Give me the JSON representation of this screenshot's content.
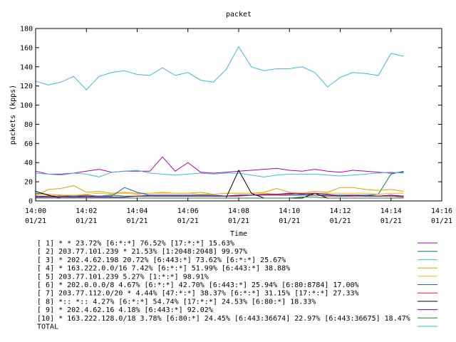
{
  "chart_data": {
    "type": "line",
    "title": "packet",
    "xlabel": "Time",
    "ylabel": "packets (kpps)",
    "ylim": [
      0,
      180
    ],
    "xlim": [
      "14:00",
      "14:16"
    ],
    "yticks": [
      0,
      20,
      40,
      60,
      80,
      100,
      120,
      140,
      160,
      180
    ],
    "xticks": [
      {
        "time": "14:00",
        "date": "01/21"
      },
      {
        "time": "14:02",
        "date": "01/21"
      },
      {
        "time": "14:04",
        "date": "01/21"
      },
      {
        "time": "14:06",
        "date": "01/21"
      },
      {
        "time": "14:08",
        "date": "01/21"
      },
      {
        "time": "14:10",
        "date": "01/21"
      },
      {
        "time": "14:12",
        "date": "01/21"
      },
      {
        "time": "14:14",
        "date": "01/21"
      },
      {
        "time": "14:16",
        "date": "01/21"
      }
    ],
    "grid": false,
    "legend_position": "bottom",
    "x_minutes": [
      0,
      0.5,
      1,
      1.5,
      2,
      2.5,
      3,
      3.5,
      4,
      4.5,
      5,
      5.5,
      6,
      6.5,
      7,
      7.5,
      8,
      8.5,
      9,
      9.5,
      10,
      10.5,
      11,
      11.5,
      12,
      12.5,
      13,
      13.5,
      14,
      14.5
    ],
    "series": [
      {
        "name": "[ 1] * * 23.72%  [6:*:*] 76.52% [17:*:*] 15.63%",
        "color": "#b000b0",
        "values": [
          31,
          28,
          28,
          29,
          31,
          33,
          30,
          31,
          31,
          31,
          46,
          31,
          40,
          30,
          29,
          30,
          31,
          32,
          33,
          34,
          32,
          31,
          33,
          31,
          30,
          32,
          31,
          30,
          29,
          30
        ]
      },
      {
        "name": "[ 2] 203.77.101.239 * 21.53%  [1:2048:2048] 99.97%",
        "color": "#008060",
        "values": [
          8,
          7,
          6,
          5,
          5,
          5,
          6,
          5,
          5,
          6,
          6,
          6,
          6,
          6,
          6,
          5,
          6,
          6,
          6,
          6,
          6,
          6,
          6,
          6,
          6,
          6,
          6,
          7,
          28,
          31
        ]
      },
      {
        "name": "[ 3] * 202.4.62.198 20.72%  [6:443:*] 73.62% [6:*:*] 25.67%",
        "color": "#40b8e0",
        "values": [
          29,
          28,
          27,
          29,
          28,
          25,
          30,
          31,
          32,
          29,
          28,
          27,
          28,
          29,
          28,
          29,
          29,
          27,
          25,
          27,
          28,
          28,
          28,
          27,
          26,
          27,
          28,
          29,
          30,
          29
        ]
      },
      {
        "name": "[ 4] * 163.222.0.0/16 7.42%  [6:*:*] 51.99% [6:443:*] 38.88%",
        "color": "#e0a000",
        "values": [
          5,
          12,
          13,
          16,
          9,
          10,
          8,
          9,
          8,
          8,
          9,
          8,
          8,
          9,
          7,
          8,
          8,
          8,
          9,
          13,
          9,
          8,
          10,
          9,
          14,
          14,
          12,
          11,
          12,
          10
        ]
      },
      {
        "name": "[ 5] 203.77.101.239 5.27%  [1:*:*] 98.91%",
        "color": "#f0c000",
        "values": [
          7,
          7,
          6,
          6,
          7,
          8,
          7,
          8,
          7,
          8,
          8,
          8,
          8,
          7,
          7,
          8,
          8,
          8,
          8,
          7,
          8,
          8,
          8,
          8,
          8,
          8,
          8,
          7,
          8,
          8
        ]
      },
      {
        "name": "[ 6] * 202.0.0.0/8 4.67%  [6:*:*] 42.70% [6:443:*] 25.94% [6:80:8784] 17.00%",
        "color": "#2060c0",
        "values": [
          5,
          5,
          5,
          5,
          6,
          5,
          5,
          14,
          9,
          6,
          6,
          6,
          6,
          6,
          6,
          5,
          5,
          6,
          6,
          6,
          6,
          6,
          6,
          6,
          5,
          5,
          6,
          5,
          5,
          5
        ]
      },
      {
        "name": "[ 7] 203.77.112.0/20 * 4.44%  [47:*:*] 38.37% [6:*:*] 31.15% [17:*:*] 27.33%",
        "color": "#e02020",
        "values": [
          4,
          5,
          5,
          4,
          5,
          4,
          4,
          4,
          5,
          5,
          5,
          5,
          5,
          5,
          5,
          5,
          5,
          6,
          6,
          6,
          7,
          8,
          6,
          5,
          5,
          5,
          5,
          5,
          5,
          4
        ]
      },
      {
        "name": "[ 8] *:: *:: 4.27%  [6:*:*] 54.74% [17:*:*] 24.53% [6:80:*] 18.33%",
        "color": "#000000",
        "values": [
          10,
          6,
          3,
          3,
          3,
          3,
          3,
          3,
          3,
          3,
          3,
          3,
          3,
          3,
          3,
          3,
          32,
          8,
          3,
          3,
          3,
          3,
          8,
          3,
          3,
          3,
          3,
          3,
          3,
          3
        ]
      },
      {
        "name": "[ 9] * 202.4.62.16 4.18%  [6:443:*] 92.02%",
        "color": "#7000a0",
        "values": [
          4,
          4,
          4,
          4,
          4,
          4,
          4,
          4,
          5,
          5,
          5,
          5,
          5,
          5,
          5,
          5,
          6,
          6,
          7,
          7,
          8,
          7,
          8,
          7,
          5,
          6,
          5,
          5,
          6,
          5
        ]
      },
      {
        "name": "[10] * 163.222.128.0/18 3.78%  [6:80:*] 24.45% [6:443:36674] 22.97% [6:443:36675] 18.47%",
        "color": "#208040",
        "values": [
          3,
          3,
          3,
          3,
          3,
          3,
          3,
          3,
          3,
          3,
          3,
          3,
          3,
          3,
          3,
          3,
          3,
          3,
          3,
          3,
          3,
          4,
          4,
          3,
          3,
          3,
          3,
          3,
          3,
          3
        ]
      },
      {
        "name": "TOTAL",
        "color": "#40b8e0",
        "values": [
          125,
          121,
          124,
          130,
          116,
          130,
          134,
          136,
          132,
          131,
          139,
          131,
          134,
          126,
          124,
          137,
          161,
          140,
          136,
          138,
          138,
          140,
          134,
          119,
          129,
          134,
          133,
          131,
          154,
          151
        ]
      }
    ]
  }
}
